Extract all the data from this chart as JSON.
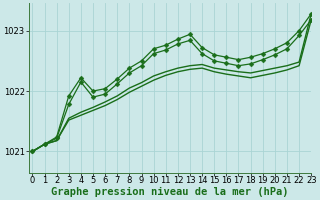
{
  "title": "Graphe pression niveau de la mer (hPa)",
  "bg_color": "#cce8e8",
  "grid_color": "#aad4d4",
  "line_color": "#1a6e1a",
  "xlim": [
    -0.3,
    23
  ],
  "ylim": [
    1020.65,
    1023.45
  ],
  "yticks": [
    1021,
    1022,
    1023
  ],
  "xticks": [
    0,
    1,
    2,
    3,
    4,
    5,
    6,
    7,
    8,
    9,
    10,
    11,
    12,
    13,
    14,
    15,
    16,
    17,
    18,
    19,
    20,
    21,
    22,
    23
  ],
  "series": [
    {
      "y": [
        1021.0,
        1021.12,
        1021.18,
        1021.55,
        1021.65,
        1021.73,
        1021.82,
        1021.92,
        1022.05,
        1022.14,
        1022.25,
        1022.32,
        1022.38,
        1022.42,
        1022.44,
        1022.38,
        1022.35,
        1022.32,
        1022.3,
        1022.34,
        1022.38,
        1022.42,
        1022.48,
        1023.28
      ],
      "marker": false,
      "lw": 1.0
    },
    {
      "y": [
        1021.0,
        1021.12,
        1021.18,
        1021.52,
        1021.6,
        1021.68,
        1021.76,
        1021.86,
        1021.98,
        1022.08,
        1022.18,
        1022.26,
        1022.32,
        1022.36,
        1022.38,
        1022.32,
        1022.28,
        1022.25,
        1022.22,
        1022.26,
        1022.3,
        1022.35,
        1022.42,
        1023.18
      ],
      "marker": false,
      "lw": 1.0
    },
    {
      "y": [
        1021.0,
        1021.12,
        1021.22,
        1021.78,
        1022.15,
        1021.9,
        1021.95,
        1022.12,
        1022.3,
        1022.42,
        1022.62,
        1022.68,
        1022.78,
        1022.84,
        1022.62,
        1022.5,
        1022.46,
        1022.42,
        1022.45,
        1022.52,
        1022.6,
        1022.7,
        1022.92,
        1023.18
      ],
      "marker": true,
      "lw": 0.9
    },
    {
      "y": [
        1021.0,
        1021.12,
        1021.24,
        1021.92,
        1022.22,
        1022.0,
        1022.04,
        1022.2,
        1022.38,
        1022.5,
        1022.7,
        1022.76,
        1022.86,
        1022.94,
        1022.72,
        1022.6,
        1022.56,
        1022.52,
        1022.56,
        1022.62,
        1022.7,
        1022.8,
        1023.0,
        1023.28
      ],
      "marker": true,
      "lw": 0.9
    }
  ],
  "tick_fontsize": 6,
  "xlabel_fontsize": 7.5,
  "marker_size": 2.5,
  "grid_lw": 0.6,
  "spine_color": "#3d7a3d"
}
